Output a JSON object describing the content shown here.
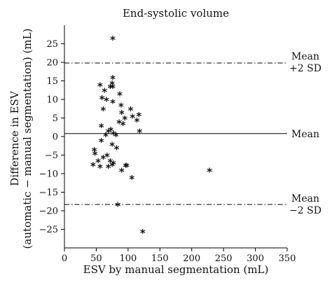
{
  "chart_data": {
    "type": "scatter",
    "title": "End-systolic volume",
    "xlabel": "ESV by manual segmentation (mL)",
    "ylabel_line1": "Difference in ESV",
    "ylabel_line2": "(automatic − manual segmentation) (mL)",
    "xlim": [
      0,
      350
    ],
    "ylim": [
      -30,
      30
    ],
    "xticks": [
      0,
      50,
      100,
      150,
      200,
      250,
      300,
      350
    ],
    "yticks": [
      25,
      20,
      15,
      10,
      5,
      0,
      -5,
      -10,
      -15,
      -20,
      -25
    ],
    "xtick_labels": [
      "0",
      "50",
      "100",
      "150",
      "200",
      "250",
      "300",
      "350"
    ],
    "ytick_labels": [
      "25",
      "20",
      "15",
      "10",
      "5",
      "0",
      "−5",
      "−10",
      "−15",
      "−20",
      "−25"
    ],
    "marker": "*",
    "mean": 0.8,
    "upper_limit": 19.8,
    "lower_limit": -18.3,
    "annotations": {
      "upper_line1": "Mean",
      "upper_line2": "+2 SD",
      "mean_label": "Mean",
      "lower_line1": "Mean",
      "lower_line2": "−2 SD"
    },
    "points": [
      [
        76,
        26
      ],
      [
        76,
        15.5
      ],
      [
        75,
        14
      ],
      [
        56,
        13.5
      ],
      [
        72,
        13
      ],
      [
        76,
        13
      ],
      [
        63,
        12
      ],
      [
        87,
        11
      ],
      [
        59,
        10
      ],
      [
        66,
        9.5
      ],
      [
        76,
        9
      ],
      [
        89,
        8
      ],
      [
        61,
        7
      ],
      [
        104,
        7
      ],
      [
        90,
        6
      ],
      [
        107,
        5
      ],
      [
        117,
        5.5
      ],
      [
        95,
        4.5
      ],
      [
        114,
        4
      ],
      [
        86,
        3.5
      ],
      [
        92,
        3
      ],
      [
        58,
        2.5
      ],
      [
        73,
        1.5
      ],
      [
        69,
        1
      ],
      [
        77,
        0.5
      ],
      [
        65,
        0
      ],
      [
        118,
        1
      ],
      [
        81,
        0
      ],
      [
        58,
        -1.5
      ],
      [
        75,
        -2.5
      ],
      [
        82,
        -3.5
      ],
      [
        47,
        -4
      ],
      [
        48,
        -5
      ],
      [
        67,
        -5.5
      ],
      [
        61,
        -6
      ],
      [
        53,
        -7
      ],
      [
        72,
        -7
      ],
      [
        77,
        -7.5
      ],
      [
        45,
        -8
      ],
      [
        56,
        -8.5
      ],
      [
        69,
        -8.5
      ],
      [
        75,
        -8
      ],
      [
        96,
        -8.2
      ],
      [
        98,
        -8.2
      ],
      [
        90,
        -9.5
      ],
      [
        106,
        -11.5
      ],
      [
        228,
        -9.5
      ],
      [
        84,
        -18.8
      ],
      [
        123,
        -26
      ]
    ]
  }
}
